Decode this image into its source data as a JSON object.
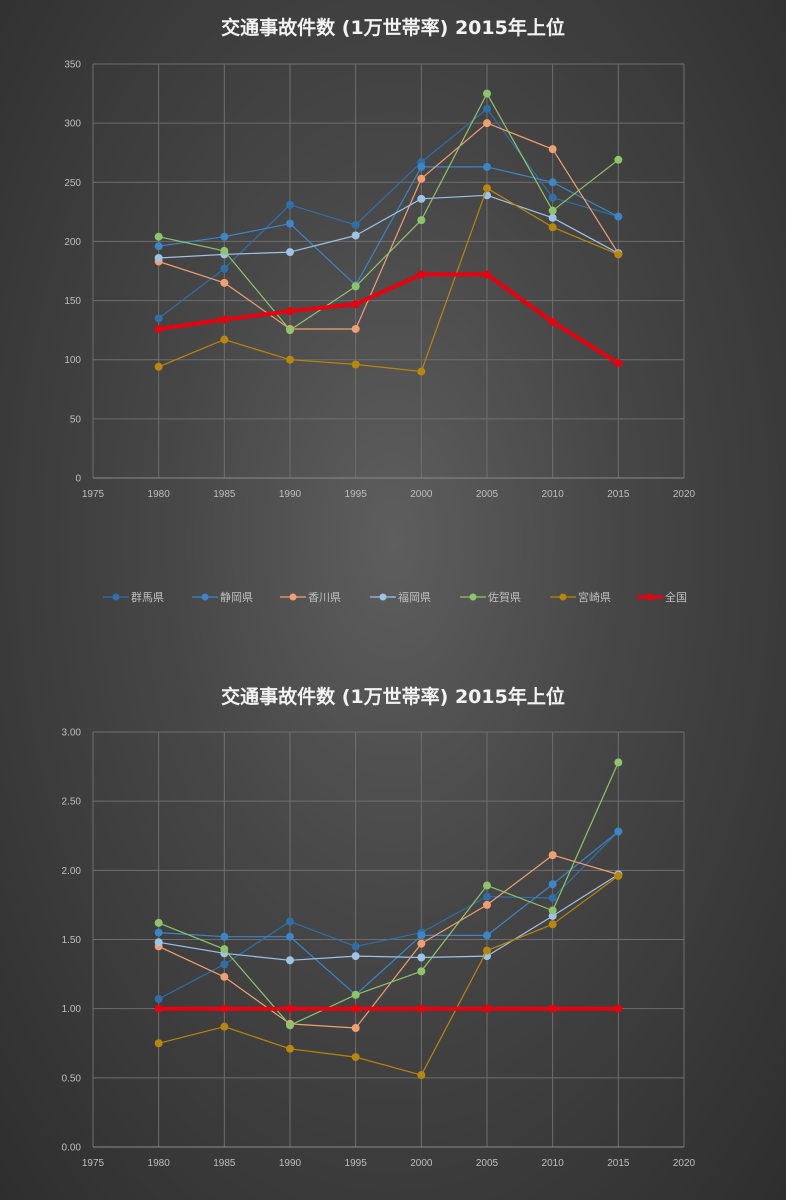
{
  "chart_data": [
    {
      "type": "line",
      "title": "交通事故件数 (1万世帯率) 2015年上位",
      "xlim": [
        1975,
        2020
      ],
      "ylim": [
        0,
        350
      ],
      "x_ticks": [
        1975,
        1980,
        1985,
        1990,
        1995,
        2000,
        2005,
        2010,
        2015,
        2020
      ],
      "y_ticks": [
        "0",
        "50",
        "100",
        "150",
        "200",
        "250",
        "300",
        "350"
      ],
      "grid": true,
      "legend_position": "bottom",
      "x": [
        1980,
        1985,
        1990,
        1995,
        2000,
        2005,
        2010,
        2015
      ],
      "series": [
        {
          "name": "群馬県",
          "color": "#2f6fa8",
          "values": [
            135,
            177,
            231,
            214,
            267,
            312,
            237,
            221
          ]
        },
        {
          "name": "静岡県",
          "color": "#3c85c8",
          "values": [
            196,
            204,
            215,
            163,
            263,
            263,
            250,
            221
          ]
        },
        {
          "name": "香川県",
          "color": "#f0a070",
          "values": [
            183,
            165,
            126,
            126,
            253,
            300,
            278,
            190
          ]
        },
        {
          "name": "福岡県",
          "color": "#9dc3e6",
          "values": [
            186,
            189,
            191,
            205,
            236,
            239,
            220,
            190
          ]
        },
        {
          "name": "佐賀県",
          "color": "#8ec46a",
          "values": [
            204,
            192,
            125,
            162,
            218,
            325,
            226,
            269
          ]
        },
        {
          "name": "宮崎県",
          "color": "#b8860b",
          "values": [
            94,
            117,
            100,
            96,
            90,
            245,
            212,
            189
          ]
        },
        {
          "name": "全国",
          "color": "#e8000e",
          "values": [
            126,
            134,
            141,
            147,
            172,
            172,
            132,
            97
          ]
        }
      ]
    },
    {
      "type": "line",
      "title": "交通事故件数 (1万世帯率) 2015年上位",
      "xlim": [
        1975,
        2020
      ],
      "ylim": [
        0,
        3
      ],
      "x_ticks": [
        1975,
        1980,
        1985,
        1990,
        1995,
        2000,
        2005,
        2010,
        2015,
        2020
      ],
      "y_ticks": [
        "0.00",
        "0.50",
        "1.00",
        "1.50",
        "2.00",
        "2.50",
        "3.00"
      ],
      "grid": true,
      "legend_position": "none",
      "x": [
        1980,
        1985,
        1990,
        1995,
        2000,
        2005,
        2010,
        2015
      ],
      "series": [
        {
          "color": "#2f6fa8",
          "values": [
            1.07,
            1.32,
            1.63,
            1.45,
            1.55,
            1.81,
            1.8,
            2.28
          ]
        },
        {
          "color": "#3c85c8",
          "values": [
            1.55,
            1.52,
            1.52,
            1.1,
            1.53,
            1.53,
            1.9,
            2.28
          ]
        },
        {
          "color": "#f0a070",
          "values": [
            1.45,
            1.23,
            0.89,
            0.86,
            1.47,
            1.75,
            2.11,
            1.97
          ]
        },
        {
          "color": "#9dc3e6",
          "values": [
            1.48,
            1.4,
            1.35,
            1.38,
            1.37,
            1.38,
            1.67,
            1.97
          ]
        },
        {
          "color": "#8ec46a",
          "values": [
            1.62,
            1.43,
            0.88,
            1.1,
            1.27,
            1.89,
            1.71,
            2.78
          ]
        },
        {
          "color": "#b8860b",
          "values": [
            0.75,
            0.87,
            0.71,
            0.65,
            0.52,
            1.42,
            1.61,
            1.96
          ]
        },
        {
          "color": "#e8000e",
          "values": [
            1.0,
            1.0,
            1.0,
            1.0,
            1.0,
            1.0,
            1.0,
            1.0
          ]
        }
      ]
    }
  ]
}
